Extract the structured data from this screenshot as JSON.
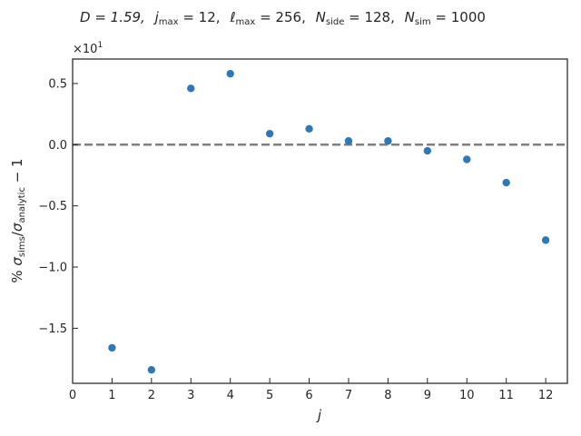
{
  "chart_data": {
    "type": "scatter",
    "title_parts": {
      "D": "D = 1.59,",
      "jmax": "j",
      "jmax_sub": "max",
      "jmax_val": " = 12,",
      "lmax": "ℓ",
      "lmax_sub": "max",
      "lmax_val": " = 256,",
      "nside": "N",
      "nside_sub": "side",
      "nside_val": " = 128,",
      "nsim": "N",
      "nsim_sub": "sim",
      "nsim_val": " = 1000"
    },
    "xlabel": "j",
    "ylabel_parts": {
      "prefix": "% ",
      "sigma1": "σ",
      "sub1": "sims",
      "slash": "/",
      "sigma2": "σ",
      "sub2": "analytic",
      "suffix": " − 1"
    },
    "offset_text": "×10",
    "offset_exp": "1",
    "x": [
      1,
      2,
      3,
      4,
      5,
      6,
      7,
      8,
      9,
      10,
      11,
      12
    ],
    "y": [
      -1.66,
      -1.84,
      0.46,
      0.58,
      0.09,
      0.13,
      0.03,
      0.03,
      -0.05,
      -0.12,
      -0.31,
      -0.78
    ],
    "xlim": [
      0,
      12.55
    ],
    "ylim": [
      -1.95,
      0.7
    ],
    "xticks": [
      "0",
      "1",
      "2",
      "3",
      "4",
      "5",
      "6",
      "7",
      "8",
      "9",
      "10",
      "11",
      "12"
    ],
    "xtick_values": [
      0,
      1,
      2,
      3,
      4,
      5,
      6,
      7,
      8,
      9,
      10,
      11,
      12
    ],
    "yticks": [
      "0.5",
      "0.0",
      "−0.5",
      "−1.0",
      "−1.5"
    ],
    "ytick_values": [
      0.5,
      0.0,
      -0.5,
      -1.0,
      -1.5
    ],
    "reference_line": 0,
    "grid": false,
    "marker_color": "#2f78b7",
    "ref_line_color": "#808080"
  }
}
